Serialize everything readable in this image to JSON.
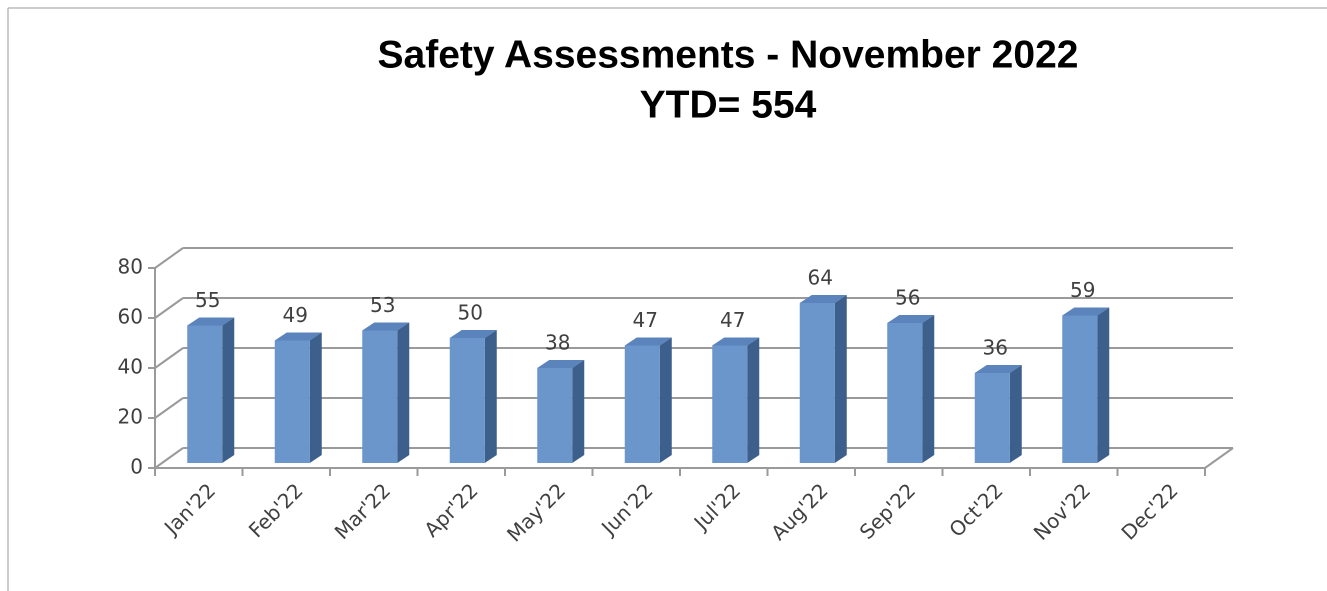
{
  "chart_data": {
    "type": "bar3d",
    "title": [
      "Safety Assessments - November 2022",
      "YTD= 554"
    ],
    "categories": [
      "Jan'22",
      "Feb'22",
      "Mar'22",
      "Apr'22",
      "May'22",
      "Jun'22",
      "Jul'22",
      "Aug'22",
      "Sep'22",
      "Oct'22",
      "Nov'22",
      "Dec'22"
    ],
    "values": [
      55,
      49,
      53,
      50,
      38,
      47,
      47,
      64,
      56,
      36,
      59,
      null
    ],
    "color": "#6a96cc",
    "ylim": [
      0,
      80
    ],
    "yticks": [
      0,
      20,
      40,
      60,
      80
    ],
    "grid": true
  }
}
